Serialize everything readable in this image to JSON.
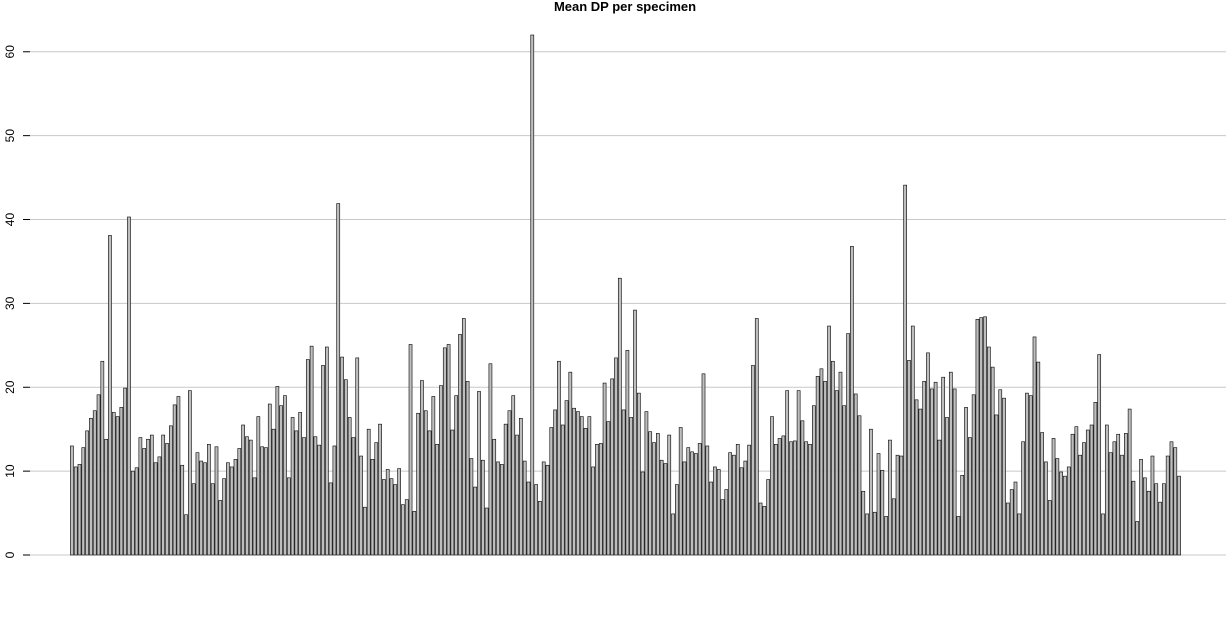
{
  "chart_data": {
    "type": "bar",
    "title": "Mean DP per specimen",
    "values": [
      13,
      10.5,
      10.8,
      12.8,
      14.8,
      16.3,
      17.2,
      19.1,
      23.1,
      13.8,
      38.1,
      17,
      16.5,
      17.6,
      19.9,
      40.3,
      10,
      10.4,
      14,
      12.7,
      13.8,
      14.3,
      11,
      11.7,
      14.3,
      13.3,
      15.4,
      17.9,
      18.9,
      10.7,
      4.8,
      19.6,
      8.5,
      12.2,
      11.2,
      11,
      13.2,
      8.5,
      12.9,
      6.5,
      9.1,
      11,
      10.5,
      11.4,
      12.7,
      15.5,
      14.1,
      13.7,
      9.2,
      16.5,
      12.9,
      12.8,
      18,
      15,
      20.1,
      17.8,
      19,
      9.2,
      16.4,
      14.8,
      17,
      14,
      23.3,
      24.9,
      14.1,
      13.1,
      22.6,
      24.8,
      8.6,
      13,
      41.9,
      23.6,
      20.9,
      16.4,
      14,
      23.5,
      11.8,
      5.7,
      15,
      11.4,
      13.4,
      15.6,
      9,
      10.2,
      9.1,
      8.4,
      10.3,
      6,
      6.6,
      25.1,
      5.2,
      16.9,
      20.8,
      17.2,
      14.8,
      18.9,
      13.2,
      20.2,
      24.7,
      25.1,
      14.9,
      19,
      26.3,
      28.2,
      20.7,
      11.5,
      8.1,
      19.5,
      11.3,
      5.6,
      22.8,
      13.8,
      11.1,
      10.8,
      15.6,
      17.2,
      19,
      14.3,
      16.3,
      11.2,
      8.7,
      62,
      8.4,
      6.4,
      11.1,
      10.7,
      15.2,
      17.3,
      23.1,
      15.5,
      18.4,
      21.8,
      17.5,
      17.1,
      16.5,
      15.1,
      16.5,
      10.5,
      13.2,
      13.3,
      20.5,
      15.9,
      21,
      23.5,
      33,
      17.3,
      24.4,
      16.4,
      29.2,
      19.3,
      9.9,
      17.1,
      14.7,
      13.4,
      14.5,
      11.3,
      10.9,
      14.3,
      4.9,
      8.4,
      15.2,
      11.1,
      12.8,
      12.3,
      12.1,
      13.3,
      21.6,
      13,
      8.7,
      10.5,
      10.2,
      6.6,
      7.8,
      12.2,
      11.9,
      13.2,
      10.4,
      11.2,
      13.1,
      22.6,
      28.2,
      6.2,
      5.8,
      9,
      16.5,
      13.2,
      13.9,
      14.2,
      19.6,
      13.5,
      13.6,
      19.6,
      16,
      13.5,
      13.2,
      17.8,
      21.3,
      22.2,
      20.7,
      27.3,
      23.1,
      19.6,
      21.8,
      17.8,
      26.4,
      36.8,
      19.2,
      16.6,
      7.6,
      4.9,
      15,
      5.1,
      12.1,
      10.1,
      4.6,
      13.7,
      6.7,
      11.9,
      11.8,
      44.1,
      23.2,
      27.3,
      18.5,
      17.4,
      20.7,
      24.1,
      19.8,
      20.6,
      13.7,
      21.2,
      16.4,
      21.8,
      19.8,
      4.6,
      9.5,
      17.6,
      14,
      19.1,
      28.1,
      28.3,
      28.4,
      24.8,
      22.4,
      16.7,
      19.7,
      18.7,
      6.2,
      7.8,
      8.7,
      4.9,
      13.5,
      19.3,
      19,
      26,
      23,
      14.6,
      11.1,
      6.5,
      13.9,
      11.5,
      9.9,
      9.4,
      10.5,
      14.4,
      15.3,
      11.9,
      13.4,
      14.9,
      15.5,
      18.2,
      23.9,
      4.9,
      15.5,
      12.2,
      13.5,
      14.4,
      11.9,
      14.5,
      17.4,
      8.8,
      4,
      11.4,
      9.2,
      7.6,
      11.8,
      8.5,
      6.3,
      8.5,
      11.8,
      13.5,
      12.8,
      9.4
    ],
    "color": "#bebebe",
    "ylim": [
      0,
      62
    ],
    "yticks": [
      0,
      10,
      20,
      30,
      40,
      50,
      60
    ],
    "grid": true
  }
}
